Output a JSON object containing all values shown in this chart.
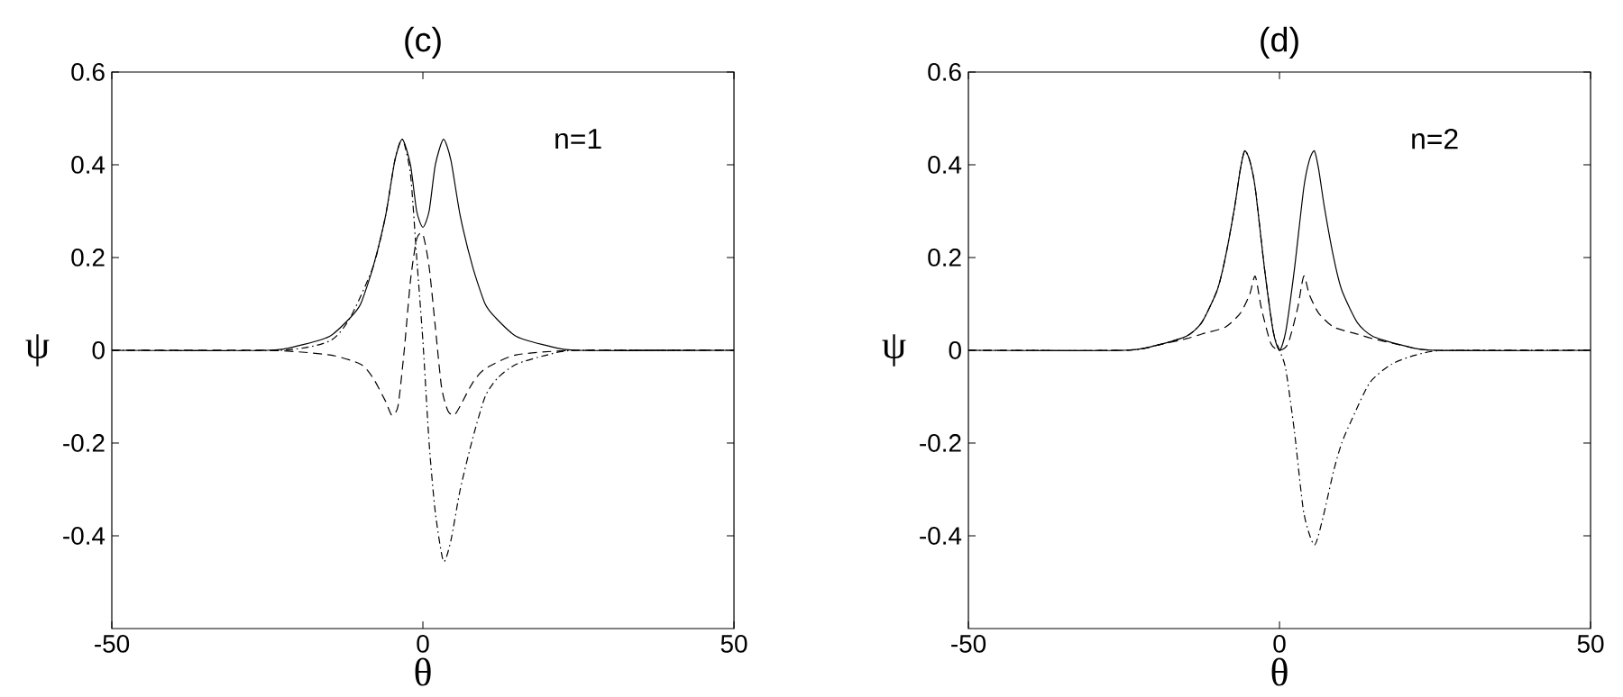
{
  "chart_data": [
    {
      "type": "line",
      "title": "(c)",
      "xlabel": "θ",
      "ylabel": "ψ",
      "annotations": [
        "n=1"
      ],
      "xlim": [
        -50,
        50
      ],
      "ylim": [
        -0.6,
        0.6
      ],
      "xticks": [
        -50,
        0,
        50
      ],
      "yticks": [
        -0.4,
        -0.2,
        0,
        0.2,
        0.4,
        0.6
      ],
      "grid": false,
      "series": [
        {
          "color": "#000000",
          "line_style": "solid",
          "x": [
            -50,
            -25,
            -20,
            -15,
            -11.7,
            -10,
            -8,
            -6,
            -4.5,
            -3.3,
            -2,
            -1,
            0,
            1,
            2,
            3.3,
            4.5,
            6,
            8,
            10,
            11.7,
            15,
            20,
            25,
            50
          ],
          "values": [
            0,
            0,
            0.01,
            0.03,
            0.07,
            0.1,
            0.18,
            0.29,
            0.41,
            0.455,
            0.4,
            0.3,
            0.265,
            0.3,
            0.4,
            0.455,
            0.41,
            0.29,
            0.18,
            0.1,
            0.07,
            0.03,
            0.01,
            0,
            0
          ]
        },
        {
          "color": "#000000",
          "line_style": "dashed",
          "x": [
            -50,
            -25,
            -15,
            -10,
            -8,
            -6,
            -5,
            -4,
            -3,
            -2,
            -1,
            0,
            1,
            2,
            3,
            4,
            5,
            6,
            8,
            10,
            15,
            25,
            50
          ],
          "values": [
            0,
            0,
            -0.01,
            -0.03,
            -0.06,
            -0.11,
            -0.14,
            -0.12,
            0.0,
            0.15,
            0.24,
            0.25,
            0.18,
            0.05,
            -0.08,
            -0.13,
            -0.14,
            -0.12,
            -0.07,
            -0.04,
            -0.01,
            0,
            0
          ]
        },
        {
          "color": "#000000",
          "line_style": "dashdot",
          "x": [
            -50,
            -23,
            -15,
            -11.7,
            -8,
            -6,
            -4.5,
            -3.3,
            -2,
            -1,
            0,
            1,
            2,
            3.3,
            4.5,
            6,
            8,
            10,
            12,
            15,
            20,
            25,
            50
          ],
          "values": [
            0,
            0,
            0.02,
            0.07,
            0.18,
            0.29,
            0.41,
            0.455,
            0.38,
            0.2,
            0.02,
            -0.2,
            -0.35,
            -0.455,
            -0.41,
            -0.3,
            -0.19,
            -0.1,
            -0.06,
            -0.03,
            -0.01,
            0,
            0
          ]
        }
      ]
    },
    {
      "type": "line",
      "title": "(d)",
      "xlabel": "θ",
      "ylabel": "ψ",
      "annotations": [
        "n=2"
      ],
      "xlim": [
        -50,
        50
      ],
      "ylim": [
        -0.6,
        0.6
      ],
      "xticks": [
        -50,
        0,
        50
      ],
      "yticks": [
        -0.4,
        -0.2,
        0,
        0.2,
        0.4,
        0.6
      ],
      "grid": false,
      "series": [
        {
          "color": "#000000",
          "line_style": "solid",
          "x": [
            -50,
            -25,
            -20,
            -15,
            -12.5,
            -10,
            -8.7,
            -7.2,
            -6.3,
            -5.6,
            -4.8,
            -3.9,
            -2.4,
            -1,
            0,
            1,
            2.4,
            3.9,
            4.8,
            5.6,
            6.3,
            7.2,
            8.7,
            10,
            12.5,
            15,
            20,
            25,
            50
          ],
          "values": [
            0,
            0,
            0.01,
            0.03,
            0.06,
            0.13,
            0.2,
            0.31,
            0.39,
            0.43,
            0.41,
            0.35,
            0.175,
            0.04,
            0,
            0.04,
            0.175,
            0.35,
            0.41,
            0.43,
            0.39,
            0.31,
            0.2,
            0.13,
            0.06,
            0.03,
            0.01,
            0,
            0
          ]
        },
        {
          "color": "#000000",
          "line_style": "dashed",
          "x": [
            -50,
            -25,
            -20,
            -15,
            -12.5,
            -8.7,
            -6.3,
            -4.8,
            -3.9,
            -2.9,
            -1.4,
            0,
            1.4,
            2.9,
            3.9,
            4.8,
            6.3,
            8.7,
            12.5,
            15,
            20,
            25,
            50
          ],
          "values": [
            0,
            0,
            0.01,
            0.025,
            0.035,
            0.05,
            0.08,
            0.12,
            0.16,
            0.09,
            0.015,
            0,
            0.015,
            0.09,
            0.16,
            0.12,
            0.08,
            0.05,
            0.035,
            0.025,
            0.01,
            0,
            0
          ]
        },
        {
          "color": "#000000",
          "line_style": "dashdot",
          "x": [
            -50,
            -25,
            -20,
            -15,
            -12.5,
            -10,
            -8.7,
            -7.2,
            -6.3,
            -5.6,
            -4.8,
            -3.9,
            -2.4,
            -1,
            0,
            1,
            2.4,
            3.9,
            5.6,
            7,
            8.7,
            10,
            11.6,
            14.5,
            18,
            22,
            27,
            50
          ],
          "values": [
            0,
            0,
            0.01,
            0.03,
            0.06,
            0.13,
            0.2,
            0.31,
            0.39,
            0.43,
            0.41,
            0.35,
            0.175,
            0.04,
            0,
            -0.04,
            -0.175,
            -0.35,
            -0.42,
            -0.36,
            -0.26,
            -0.2,
            -0.15,
            -0.07,
            -0.03,
            -0.01,
            0,
            0
          ]
        }
      ]
    }
  ]
}
